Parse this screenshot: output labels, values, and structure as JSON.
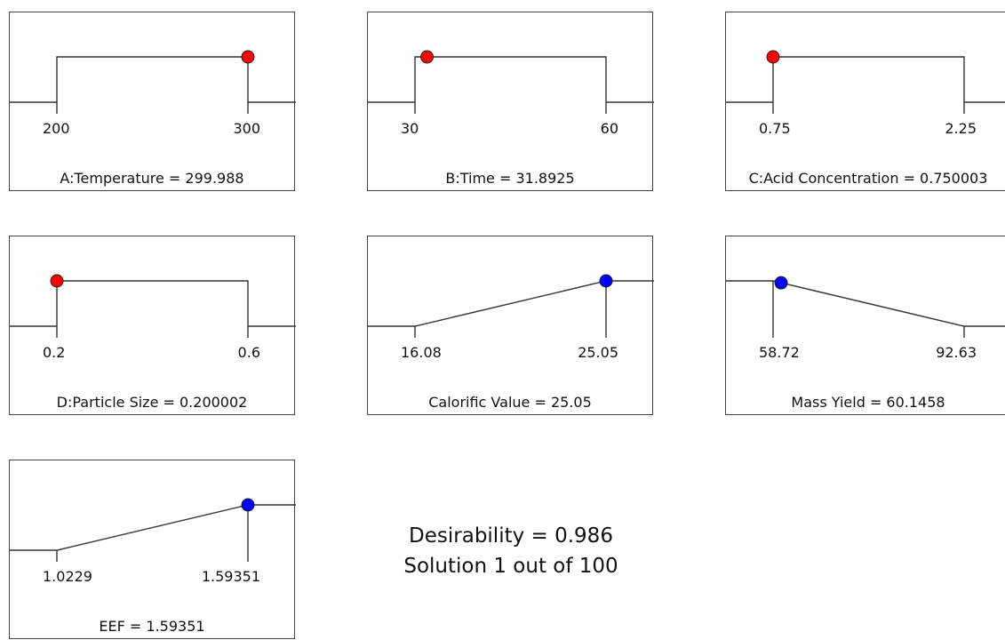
{
  "chart_data": [
    {
      "type": "line",
      "title": "",
      "factor": "A:Temperature",
      "shape": "range",
      "low": 200,
      "high": 300,
      "low_label": "200",
      "high_label": "300",
      "value": 299.988,
      "marker": "red",
      "caption_name": "A:Temperature ",
      "caption_value": "299.988"
    },
    {
      "type": "line",
      "title": "",
      "factor": "B:Time",
      "shape": "range",
      "low": 30,
      "high": 60,
      "low_label": "30",
      "high_label": "60",
      "value": 31.8925,
      "marker": "red",
      "caption_name": "B:Time ",
      "caption_value": "31.8925"
    },
    {
      "type": "line",
      "title": "",
      "factor": "C:Acid Concentration",
      "shape": "range",
      "low": 0.75,
      "high": 2.25,
      "low_label": "0.75",
      "high_label": "2.25",
      "value": 0.750003,
      "marker": "red",
      "caption_name": "C:Acid Concentration ",
      "caption_value": "0.750003"
    },
    {
      "type": "line",
      "title": "",
      "factor": "D:Particle Size",
      "shape": "range",
      "low": 0.2,
      "high": 0.6,
      "low_label": "0.2",
      "high_label": "0.6",
      "value": 0.200002,
      "marker": "red",
      "caption_name": "D:Particle Size ",
      "caption_value": "0.200002"
    },
    {
      "type": "line",
      "title": "",
      "factor": "Calorific Value",
      "shape": "maximize",
      "low": 16.08,
      "high": 25.05,
      "low_label": "16.08",
      "high_label": "25.05",
      "value": 25.05,
      "marker": "blue",
      "caption_name": "Calorific Value",
      "caption_value": "25.05"
    },
    {
      "type": "line",
      "title": "",
      "factor": "Mass Yield",
      "shape": "minimize",
      "low": 58.72,
      "high": 92.63,
      "low_label": "58.72",
      "high_label": "92.63",
      "value": 60.1458,
      "marker": "blue",
      "caption_name": "Mass Yield",
      "caption_value": "60.1458"
    },
    {
      "type": "line",
      "title": "",
      "factor": "EEF",
      "shape": "maximize",
      "low": 1.0229,
      "high": 1.59351,
      "low_label": "1.0229",
      "high_label": "1.59351",
      "value": 1.59351,
      "marker": "blue",
      "caption_name": "EEF",
      "caption_value": "1.59351"
    }
  ],
  "summary": {
    "desirability": "Desirability = 0.986",
    "solution": "Solution 1 out of 100"
  },
  "colors": {
    "red_marker": "#ff0000",
    "blue_marker": "#0000ff",
    "line": "#333333",
    "frame": "#444444"
  }
}
